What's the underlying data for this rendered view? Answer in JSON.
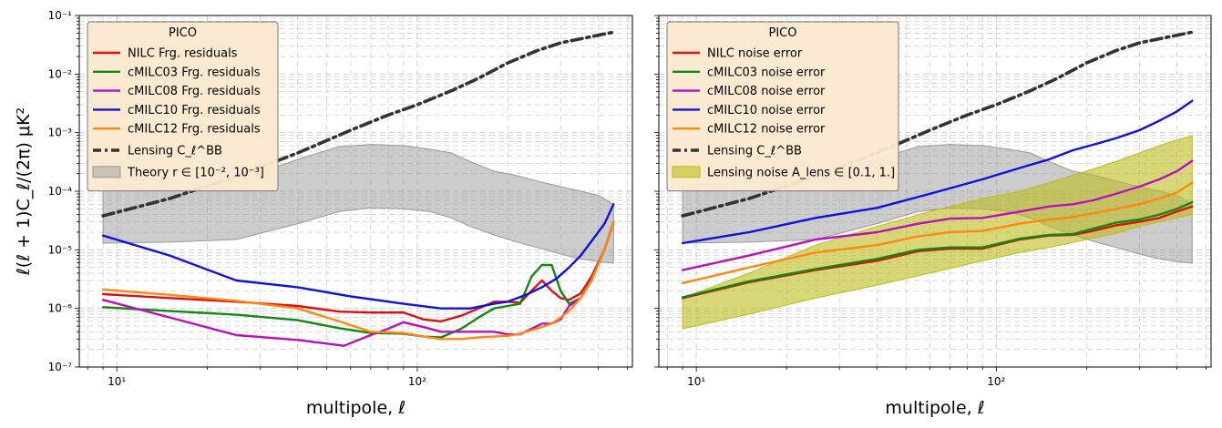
{
  "figure": {
    "ylabel": "ℓ(ℓ + 1)C_ℓ/(2π)  μK²",
    "yticks": [
      {
        "exp": -7,
        "label": "10⁻⁷"
      },
      {
        "exp": -6,
        "label": "10⁻⁶"
      },
      {
        "exp": -5,
        "label": "10⁻⁵"
      },
      {
        "exp": -4,
        "label": "10⁻⁴"
      },
      {
        "exp": -3,
        "label": "10⁻³"
      },
      {
        "exp": -2,
        "label": "10⁻²"
      },
      {
        "exp": -1,
        "label": "10⁻¹"
      }
    ]
  },
  "chart_data": [
    {
      "type": "line",
      "xlabel": "multipole, ℓ",
      "ylabel": "ℓ(ℓ + 1)C_ℓ/(2π)  μK²",
      "xscale": "log",
      "yscale": "log",
      "xlim": [
        7.5,
        520
      ],
      "ylim": [
        1e-07,
        0.1
      ],
      "xticks": [
        {
          "value": 10,
          "label": "10¹"
        },
        {
          "value": 100,
          "label": "10²"
        }
      ],
      "grid": true,
      "legend": {
        "title": "PICO",
        "location": "upper left"
      },
      "series": [
        {
          "name": "NILC Frg. residuals",
          "color": "#dd1111",
          "style": "line",
          "x": [
            9,
            15,
            25,
            40,
            55,
            70,
            90,
            105,
            120,
            140,
            160,
            180,
            200,
            220,
            240,
            260,
            280,
            300,
            320,
            350,
            380,
            420,
            450
          ],
          "y": [
            1.75e-06,
            1.5e-06,
            1.3e-06,
            1.1e-06,
            8.8e-07,
            8.5e-07,
            8.5e-07,
            6.5e-07,
            6e-07,
            7.5e-07,
            1e-06,
            1.3e-06,
            1.3e-06,
            1.25e-06,
            2e-06,
            3e-06,
            2e-06,
            1.5e-06,
            1.4e-06,
            1.8e-06,
            3.5e-06,
            1e-05,
            3e-05
          ]
        },
        {
          "name": "cMILC03 Frg. residuals",
          "color": "#118811",
          "style": "line",
          "x": [
            9,
            15,
            25,
            40,
            55,
            70,
            90,
            105,
            120,
            140,
            160,
            180,
            200,
            220,
            240,
            260,
            280,
            300,
            320,
            350,
            380,
            420,
            450
          ],
          "y": [
            1.05e-06,
            9e-07,
            7.8e-07,
            6.3e-07,
            4.6e-07,
            3.8e-07,
            3.7e-07,
            3.3e-07,
            3.2e-07,
            4.5e-07,
            7e-07,
            1e-06,
            1.1e-06,
            1.2e-06,
            3.5e-06,
            5.5e-06,
            5.5e-06,
            2e-06,
            1.2e-06,
            1.5e-06,
            3e-06,
            1e-05,
            3e-05
          ]
        },
        {
          "name": "cMILC08 Frg. residuals",
          "color": "#bb11bb",
          "style": "line",
          "x": [
            9,
            15,
            25,
            40,
            57,
            70,
            80,
            90,
            105,
            120,
            140,
            160,
            180,
            200,
            220,
            240,
            260,
            280,
            300,
            320,
            350,
            380,
            420,
            450
          ],
          "y": [
            1.4e-06,
            7e-07,
            3.5e-07,
            2.9e-07,
            2.3e-07,
            3.5e-07,
            4.5e-07,
            5.8e-07,
            4.8e-07,
            4e-07,
            4e-07,
            4e-07,
            4e-07,
            3.6e-07,
            3.6e-07,
            4.5e-07,
            5.5e-07,
            5.5e-07,
            6.5e-07,
            1.1e-06,
            1.5e-06,
            3e-06,
            1e-05,
            3e-05
          ]
        },
        {
          "name": "cMILC10 Frg. residuals",
          "color": "#1111dd",
          "style": "line",
          "x": [
            9,
            15,
            25,
            40,
            60,
            90,
            120,
            150,
            180,
            200,
            230,
            260,
            290,
            320,
            350,
            380,
            420,
            450
          ],
          "y": [
            1.75e-05,
            8e-06,
            3e-06,
            2.3e-06,
            1.6e-06,
            1.2e-06,
            1e-06,
            1e-06,
            1.2e-06,
            1.3e-06,
            1.7e-06,
            2.3e-06,
            3.2e-06,
            5e-06,
            8e-06,
            1.4e-05,
            2.8e-05,
            6e-05
          ]
        },
        {
          "name": "cMILC12 Frg. residuals",
          "color": "#ff8811",
          "style": "line",
          "x": [
            9,
            15,
            25,
            40,
            55,
            70,
            90,
            105,
            120,
            140,
            160,
            180,
            200,
            220,
            250,
            280,
            300,
            320,
            350,
            380,
            420,
            450
          ],
          "y": [
            2.1e-06,
            1.7e-06,
            1.35e-06,
            1e-06,
            6e-07,
            4e-07,
            3.8e-07,
            3.3e-07,
            3e-07,
            3e-07,
            3.2e-07,
            3.3e-07,
            3.4e-07,
            3.7e-07,
            4.5e-07,
            5.5e-07,
            7e-07,
            9e-07,
            1.5e-06,
            3e-06,
            1e-05,
            3e-05
          ]
        },
        {
          "name": "Lensing C_ℓ^BB",
          "color": "#333333",
          "style": "dashdot",
          "x": [
            9,
            15,
            25,
            40,
            60,
            80,
            100,
            130,
            160,
            200,
            250,
            300,
            350,
            400,
            450
          ],
          "y": [
            3.8e-05,
            7.5e-05,
            0.00018,
            0.00045,
            0.0011,
            0.002,
            0.003,
            0.0052,
            0.0085,
            0.0155,
            0.025,
            0.034,
            0.04,
            0.046,
            0.052
          ]
        },
        {
          "name": "Theory r ∈ [10⁻², 10⁻³]",
          "color": "#999999",
          "style": "band",
          "x": [
            9,
            15,
            25,
            40,
            55,
            70,
            90,
            110,
            130,
            150,
            180,
            210,
            250,
            300,
            350,
            400,
            450
          ],
          "y_low": [
            1.3e-05,
            1.35e-05,
            1.5e-05,
            2.8e-05,
            4.5e-05,
            5.2e-05,
            5e-05,
            4.5e-05,
            3.5e-05,
            2.5e-05,
            1.8e-05,
            1.4e-05,
            1.1e-05,
            8.5e-06,
            7e-06,
            6.3e-06,
            5.9e-06
          ],
          "y_high": [
            0.00013,
            0.00014,
            0.00015,
            0.00035,
            0.00058,
            0.00063,
            0.0006,
            0.00052,
            0.00045,
            0.00032,
            0.00022,
            0.00019,
            0.00015,
            0.00012,
            0.0001,
            8.5e-05,
            6e-05
          ]
        }
      ]
    },
    {
      "type": "line",
      "xlabel": "multipole, ℓ",
      "ylabel": "",
      "xscale": "log",
      "yscale": "log",
      "xlim": [
        7.5,
        520
      ],
      "ylim": [
        1e-07,
        0.1
      ],
      "xticks": [
        {
          "value": 10,
          "label": "10¹"
        },
        {
          "value": 100,
          "label": "10²"
        }
      ],
      "grid": true,
      "legend": {
        "title": "PICO",
        "location": "upper left"
      },
      "series": [
        {
          "name": "NILC noise error",
          "color": "#dd1111",
          "style": "line",
          "x": [
            9,
            15,
            25,
            40,
            55,
            70,
            90,
            120,
            150,
            180,
            210,
            250,
            300,
            350,
            400,
            450
          ],
          "y": [
            1.5e-06,
            2.8e-06,
            4.5e-06,
            6.5e-06,
            9.5e-06,
            1.05e-05,
            1.05e-05,
            1.5e-05,
            1.75e-05,
            1.8e-05,
            2.1e-05,
            2.6e-05,
            3e-05,
            3.5e-05,
            4.5e-05,
            5.5e-05
          ]
        },
        {
          "name": "cMILC03 noise error",
          "color": "#118811",
          "style": "line",
          "x": [
            9,
            15,
            25,
            40,
            55,
            70,
            90,
            120,
            150,
            180,
            210,
            250,
            300,
            350,
            400,
            450
          ],
          "y": [
            1.55e-06,
            2.9e-06,
            4.7e-06,
            7e-06,
            1e-05,
            1.1e-05,
            1.1e-05,
            1.55e-05,
            1.8e-05,
            1.85e-05,
            2.3e-05,
            2.9e-05,
            3.3e-05,
            4e-05,
            5e-05,
            6.5e-05
          ]
        },
        {
          "name": "cMILC08 noise error",
          "color": "#bb11bb",
          "style": "line",
          "x": [
            9,
            15,
            25,
            40,
            55,
            70,
            90,
            120,
            150,
            180,
            210,
            250,
            300,
            350,
            400,
            450
          ],
          "y": [
            4.5e-06,
            8e-06,
            1.5e-05,
            2e-05,
            2.8e-05,
            3.4e-05,
            3.5e-05,
            4.5e-05,
            5.5e-05,
            6e-05,
            7e-05,
            9e-05,
            0.00012,
            0.00016,
            0.00022,
            0.00033
          ]
        },
        {
          "name": "cMILC10 noise error",
          "color": "#1111dd",
          "style": "line",
          "x": [
            9,
            15,
            25,
            40,
            60,
            90,
            120,
            150,
            180,
            210,
            250,
            300,
            350,
            400,
            450
          ],
          "y": [
            1.3e-05,
            2e-05,
            3.5e-05,
            5.2e-05,
            9e-05,
            0.00016,
            0.00025,
            0.00035,
            0.0005,
            0.00062,
            0.0008,
            0.0011,
            0.0016,
            0.0023,
            0.0035
          ]
        },
        {
          "name": "cMILC12 noise error",
          "color": "#ff8811",
          "style": "line",
          "x": [
            9,
            15,
            25,
            40,
            55,
            70,
            90,
            120,
            150,
            180,
            210,
            250,
            300,
            350,
            400,
            450
          ],
          "y": [
            2.7e-06,
            5e-06,
            9e-06,
            1.2e-05,
            1.7e-05,
            2e-05,
            2.1e-05,
            2.8e-05,
            3.3e-05,
            3.6e-05,
            4.2e-05,
            5e-05,
            6e-05,
            7.5e-05,
            9.5e-05,
            0.00014
          ]
        },
        {
          "name": "Lensing C_ℓ^BB",
          "color": "#333333",
          "style": "dashdot",
          "x": [
            9,
            15,
            25,
            40,
            60,
            80,
            100,
            130,
            160,
            200,
            250,
            300,
            350,
            400,
            450
          ],
          "y": [
            3.8e-05,
            7.5e-05,
            0.00018,
            0.00045,
            0.0011,
            0.002,
            0.003,
            0.0052,
            0.0085,
            0.0155,
            0.025,
            0.034,
            0.04,
            0.046,
            0.052
          ]
        },
        {
          "name": "Theory r ∈ [10⁻², 10⁻³]",
          "color": "#999999",
          "style": "band",
          "in_legend": false,
          "x": [
            9,
            15,
            25,
            40,
            55,
            70,
            90,
            110,
            130,
            150,
            180,
            210,
            250,
            300,
            350,
            400,
            450
          ],
          "y_low": [
            1.3e-05,
            1.35e-05,
            1.5e-05,
            2.8e-05,
            4.5e-05,
            5.2e-05,
            5e-05,
            4.5e-05,
            3.5e-05,
            2.5e-05,
            1.8e-05,
            1.4e-05,
            1.1e-05,
            8.5e-06,
            7e-06,
            6.3e-06,
            5.9e-06
          ],
          "y_high": [
            0.00013,
            0.00014,
            0.00015,
            0.00035,
            0.00058,
            0.00063,
            0.0006,
            0.00052,
            0.00045,
            0.00032,
            0.00022,
            0.00019,
            0.00015,
            0.00012,
            0.0001,
            8.5e-05,
            6e-05
          ]
        },
        {
          "name": "Lensing noise A_lens ∈ [0.1, 1.]",
          "color": "#bcbc1c",
          "style": "band",
          "x": [
            9,
            15,
            25,
            40,
            60,
            90,
            120,
            150,
            200,
            250,
            300,
            350,
            400,
            450
          ],
          "y_low": [
            4.5e-07,
            8e-07,
            1.5e-06,
            2.5e-06,
            4e-06,
            6.5e-06,
            9e-06,
            1.1e-05,
            1.5e-05,
            1.9e-05,
            2.5e-05,
            3e-05,
            3.5e-05,
            4e-05
          ],
          "y_high": [
            1.5e-06,
            4e-06,
            1.2e-05,
            2.5e-05,
            4.5e-05,
            7.5e-05,
            0.0001,
            0.00014,
            0.00022,
            0.00032,
            0.00045,
            0.0006,
            0.00075,
            0.00088
          ]
        }
      ]
    }
  ]
}
